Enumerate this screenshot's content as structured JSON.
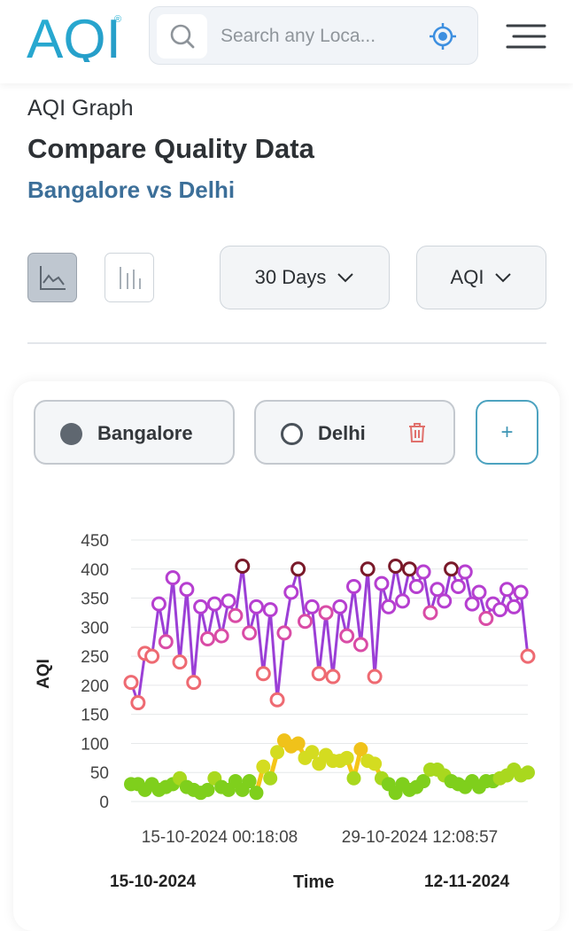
{
  "header": {
    "logo_text": "AQI",
    "logo_mark": "®",
    "search_placeholder": "Search any Loca...",
    "icons": [
      "search-icon",
      "locate-icon",
      "menu-icon"
    ],
    "brand_colors": {
      "logo_blue": "#2eb4d6",
      "logo_green": "#8cc63f",
      "accent": "#3d95d4"
    }
  },
  "page": {
    "breadcrumb": "AQI Graph",
    "title": "Compare Quality Data",
    "subtitle": "Bangalore vs Delhi"
  },
  "controls": {
    "view_icons": [
      "line-chart-icon",
      "bar-chart-icon"
    ],
    "active_view": "line",
    "range_label": "30 Days",
    "metric_label": "AQI"
  },
  "locations": {
    "primary": "Bangalore",
    "secondary": "Delhi",
    "add_label": "+"
  },
  "chart_data": {
    "type": "line",
    "ylabel": "AQI",
    "ylim": [
      0,
      450
    ],
    "yticks": [
      0,
      50,
      100,
      150,
      200,
      250,
      300,
      350,
      400,
      450
    ],
    "x_tick_labels": [
      "15-10-2024 00:18:08",
      "29-10-2024 12:08:57"
    ],
    "x_start_label": "15-10-2024",
    "x_end_label": "12-11-2024",
    "xlabel": "Time",
    "grid": true,
    "series": [
      {
        "name": "Delhi",
        "values": [
          205,
          170,
          255,
          250,
          340,
          275,
          385,
          240,
          365,
          205,
          335,
          280,
          340,
          285,
          345,
          320,
          405,
          290,
          335,
          220,
          330,
          175,
          290,
          360,
          400,
          310,
          335,
          220,
          325,
          215,
          335,
          285,
          370,
          270,
          400,
          215,
          375,
          335,
          405,
          345,
          400,
          370,
          395,
          325,
          365,
          345,
          400,
          370,
          395,
          340,
          360,
          315,
          340,
          330,
          365,
          335,
          360,
          250
        ]
      },
      {
        "name": "Bangalore",
        "values": [
          30,
          30,
          20,
          30,
          20,
          25,
          30,
          40,
          25,
          20,
          15,
          20,
          40,
          25,
          20,
          35,
          20,
          35,
          15,
          60,
          40,
          85,
          105,
          95,
          100,
          75,
          85,
          65,
          80,
          70,
          70,
          75,
          40,
          90,
          70,
          65,
          40,
          30,
          15,
          30,
          20,
          25,
          35,
          55,
          55,
          45,
          35,
          30,
          25,
          35,
          25,
          35,
          35,
          40,
          45,
          55,
          45,
          50
        ]
      }
    ]
  }
}
